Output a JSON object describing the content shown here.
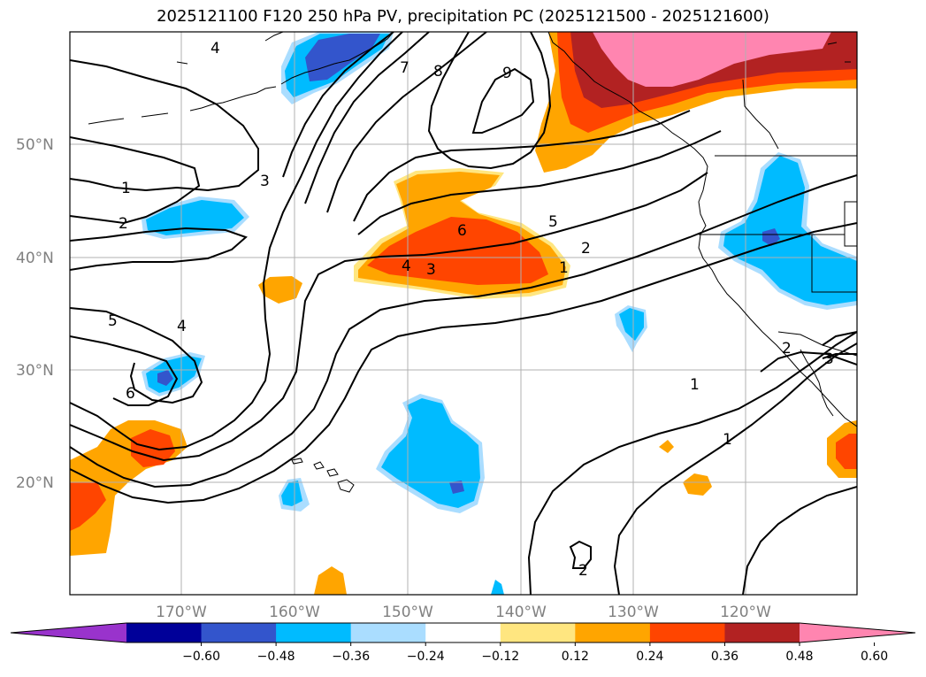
{
  "title": "2025121100 F120 250 hPa PV, precipitation PC (2025121500 - 2025121600)",
  "lat_labels": [
    "50°N",
    "40°N",
    "30°N",
    "20°N"
  ],
  "lon_labels": [
    "170°W",
    "160°W",
    "150°W",
    "140°W",
    "130°W",
    "120°W"
  ],
  "colorbar": {
    "tick_labels": [
      "−0.60",
      "−0.48",
      "−0.36",
      "−0.24",
      "−0.12",
      "0.12",
      "0.24",
      "0.36",
      "0.48",
      "0.60"
    ],
    "colors": [
      "#9933cc",
      "#000099",
      "#3355cc",
      "#00bbff",
      "#aaddff",
      "#ffffff",
      "#ffe680",
      "#ffa500",
      "#ff4500",
      "#b22222",
      "#ff85b0"
    ]
  },
  "fill_colors": {
    "light_yellow": "#ffe680",
    "orange": "#ffa500",
    "red_orange": "#ff4500",
    "dark_red": "#b22222",
    "pink": "#ff85b0",
    "light_blue": "#aaddff",
    "cyan": "#00bbff",
    "blue": "#3355cc"
  },
  "contour_labels": [
    "4",
    "7",
    "8",
    "9",
    "3",
    "1",
    "2",
    "6",
    "5",
    "2",
    "4",
    "3",
    "1",
    "5",
    "4",
    "6",
    "2",
    "3",
    "1",
    "1",
    "2"
  ]
}
